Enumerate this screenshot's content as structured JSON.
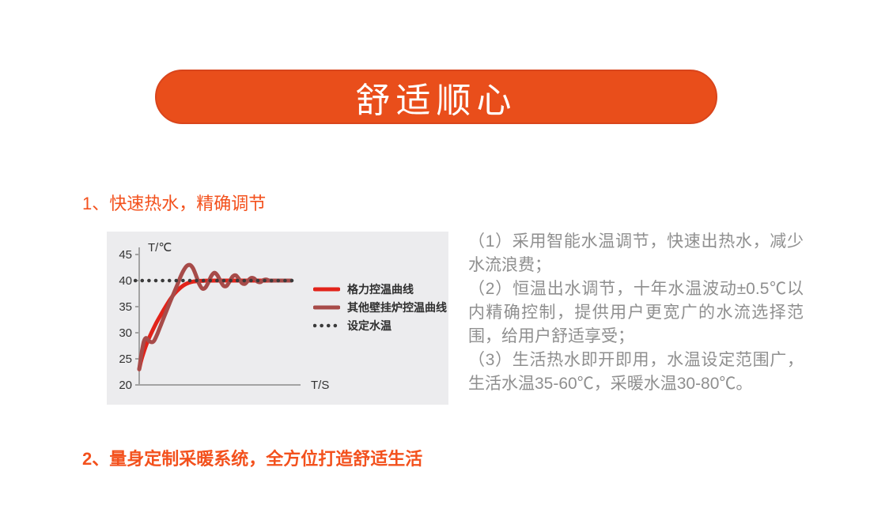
{
  "theme": {
    "heading_color": "#f3511d",
    "body_text_color": "#8f8f8f",
    "page_background": "#ffffff"
  },
  "banner": {
    "title": "舒适顺心",
    "bg_color": "#e94e1b",
    "border_color": "#d9451c",
    "text_color": "#ffffff"
  },
  "sections": [
    {
      "heading": "1、快速热水，精确调节"
    },
    {
      "heading": "2、量身定制采暖系统，全方位打造舒适生活"
    }
  ],
  "feature_text": {
    "paragraphs": [
      "（1）采用智能水温调节，快速出热水，减少水流浪费；",
      "（2）恒温出水调节，十年水温波动±0.5℃以内精确控制，提供用户更宽广的水流选择范围，给用户舒适享受；",
      "（3）生活热水即开即用，水温设定范围广，生活水温35-60℃，采暖水温30-80℃。"
    ]
  },
  "chart_data": {
    "type": "line",
    "title": "",
    "xlabel": "T/S",
    "ylabel": "T/℃",
    "xlim": [
      0,
      100
    ],
    "ylim": [
      20,
      45
    ],
    "yticks": [
      45,
      40,
      35,
      30,
      25,
      20
    ],
    "grid": false,
    "legend_position": "right-inside",
    "background": "#ececee",
    "axis_color": "#a3a3a3",
    "tick_label_color": "#333333",
    "set_temperature": 40,
    "series": [
      {
        "name": "格力控温曲线",
        "color": "#e2231a",
        "style": "solid",
        "width": 5,
        "points": [
          [
            0,
            23
          ],
          [
            1,
            24.3
          ],
          [
            2,
            25.4
          ],
          [
            4,
            27.2
          ],
          [
            6,
            28.7
          ],
          [
            8,
            30.0
          ],
          [
            11,
            31.8
          ],
          [
            14,
            33.4
          ],
          [
            17,
            34.9
          ],
          [
            20,
            36.3
          ],
          [
            23,
            37.5
          ],
          [
            26,
            38.4
          ],
          [
            29,
            39.1
          ],
          [
            32,
            39.55
          ],
          [
            35,
            39.8
          ],
          [
            38,
            39.9
          ],
          [
            42,
            39.97
          ],
          [
            50,
            40
          ],
          [
            70,
            40
          ],
          [
            99,
            40
          ]
        ]
      },
      {
        "name": "其他壁挂炉控温曲线",
        "color": "#a74b49",
        "style": "solid",
        "width": 5,
        "points": [
          [
            0,
            23
          ],
          [
            1.5,
            26
          ],
          [
            3,
            28.3
          ],
          [
            4.5,
            29.0
          ],
          [
            6.5,
            28.4
          ],
          [
            8.5,
            28.2
          ],
          [
            10,
            28.6
          ],
          [
            12,
            29.9
          ],
          [
            14,
            31.4
          ],
          [
            17,
            33.6
          ],
          [
            20,
            35.8
          ],
          [
            23,
            37.9
          ],
          [
            25,
            39.3
          ],
          [
            27,
            40.8
          ],
          [
            29,
            42.0
          ],
          [
            31,
            42.8
          ],
          [
            33,
            43.0
          ],
          [
            35,
            42.4
          ],
          [
            37,
            41.0
          ],
          [
            39,
            39.4
          ],
          [
            41,
            38.5
          ],
          [
            43,
            38.6
          ],
          [
            45,
            39.6
          ],
          [
            47,
            40.9
          ],
          [
            49,
            41.5
          ],
          [
            51,
            41.0
          ],
          [
            53,
            39.9
          ],
          [
            55,
            39.0
          ],
          [
            57,
            39.0
          ],
          [
            59,
            39.9
          ],
          [
            61,
            40.8
          ],
          [
            63,
            41.0
          ],
          [
            65,
            40.3
          ],
          [
            67,
            39.5
          ],
          [
            69,
            39.4
          ],
          [
            71,
            40.0
          ],
          [
            73,
            40.5
          ],
          [
            75,
            40.4
          ],
          [
            77,
            39.8
          ],
          [
            79,
            39.7
          ],
          [
            81,
            40.1
          ],
          [
            83,
            40.2
          ],
          [
            85,
            40.0
          ],
          [
            90,
            40
          ],
          [
            99,
            40
          ]
        ]
      },
      {
        "name": "设定水温",
        "color": "#3a3a3a",
        "style": "dotted",
        "width": 4.5,
        "points": [
          [
            -2.5,
            40
          ],
          [
            100,
            40
          ]
        ]
      }
    ]
  }
}
